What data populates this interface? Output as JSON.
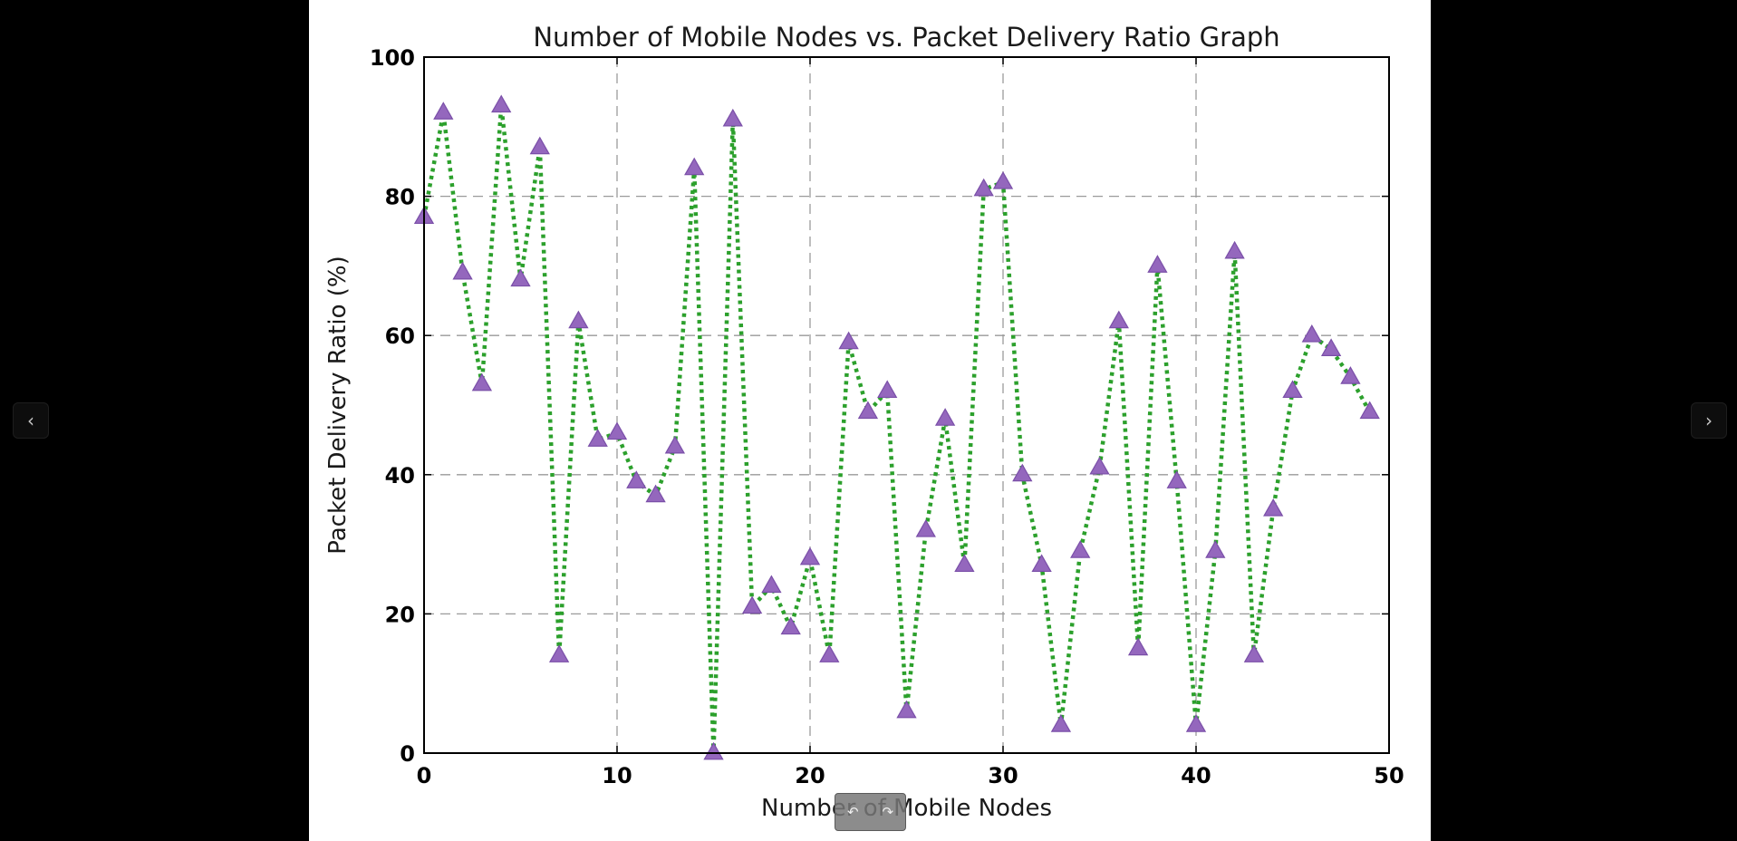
{
  "viewer": {
    "prev_icon": "‹",
    "next_icon": "›",
    "rotate_left_icon": "↶",
    "rotate_right_icon": "↷"
  },
  "colors": {
    "line": "#2ca02c",
    "marker_fill": "#9467bd",
    "marker_edge": "#7a4fa8",
    "grid": "#9a9a9a",
    "background": "#000000"
  },
  "chart_data": {
    "type": "line",
    "title": "Number of Mobile Nodes vs. Packet Delivery Ratio Graph",
    "xlabel": "Number of Mobile Nodes",
    "ylabel": "Packet Delivery Ratio (%)",
    "xlim": [
      0,
      50
    ],
    "ylim": [
      0,
      100
    ],
    "xticks": [
      0,
      10,
      20,
      30,
      40,
      50
    ],
    "yticks": [
      0,
      20,
      40,
      60,
      80,
      100
    ],
    "grid": true,
    "line_style": "dotted",
    "marker": "triangle",
    "series": [
      {
        "x": [
          0,
          1,
          2,
          3,
          4,
          5,
          6,
          7,
          8,
          9,
          10,
          11,
          12,
          13,
          14,
          15,
          16,
          17,
          18,
          19,
          20,
          21,
          22,
          23,
          24,
          25,
          26,
          27,
          28,
          29,
          30,
          31,
          32,
          33,
          34,
          35,
          36,
          37,
          38,
          39,
          40,
          41,
          42,
          43,
          44,
          45,
          46,
          47,
          48,
          49
        ],
        "values": [
          77,
          92,
          69,
          53,
          93,
          68,
          87,
          14,
          62,
          45,
          46,
          39,
          37,
          44,
          84,
          0,
          91,
          21,
          24,
          18,
          28,
          14,
          59,
          49,
          52,
          6,
          32,
          48,
          27,
          81,
          82,
          40,
          27,
          4,
          29,
          41,
          62,
          15,
          70,
          39,
          4,
          29,
          72,
          14,
          35,
          52,
          60,
          58,
          54,
          49
        ]
      }
    ]
  }
}
